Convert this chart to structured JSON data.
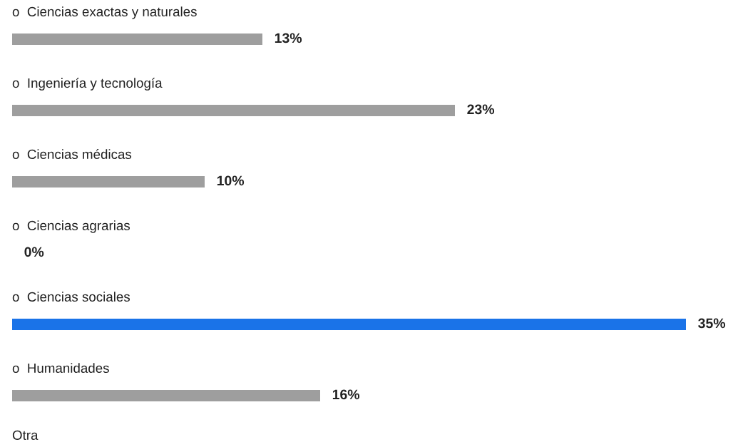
{
  "chart_data": {
    "type": "bar",
    "orientation": "horizontal",
    "categories": [
      "o  Ciencias exactas y naturales",
      "o  Ingeniería y tecnología",
      "o  Ciencias médicas",
      "o  Ciencias agrarias",
      "o  Ciencias sociales",
      "o  Humanidades"
    ],
    "values": [
      13,
      23,
      10,
      0,
      35,
      16
    ],
    "colors": [
      "#9e9e9e",
      "#9e9e9e",
      "#9e9e9e",
      "#9e9e9e",
      "#1a73e8",
      "#9e9e9e"
    ],
    "value_labels": [
      "13%",
      "23%",
      "10%",
      "0%",
      "35%",
      "16%"
    ],
    "annotations": [
      "Otra"
    ]
  }
}
